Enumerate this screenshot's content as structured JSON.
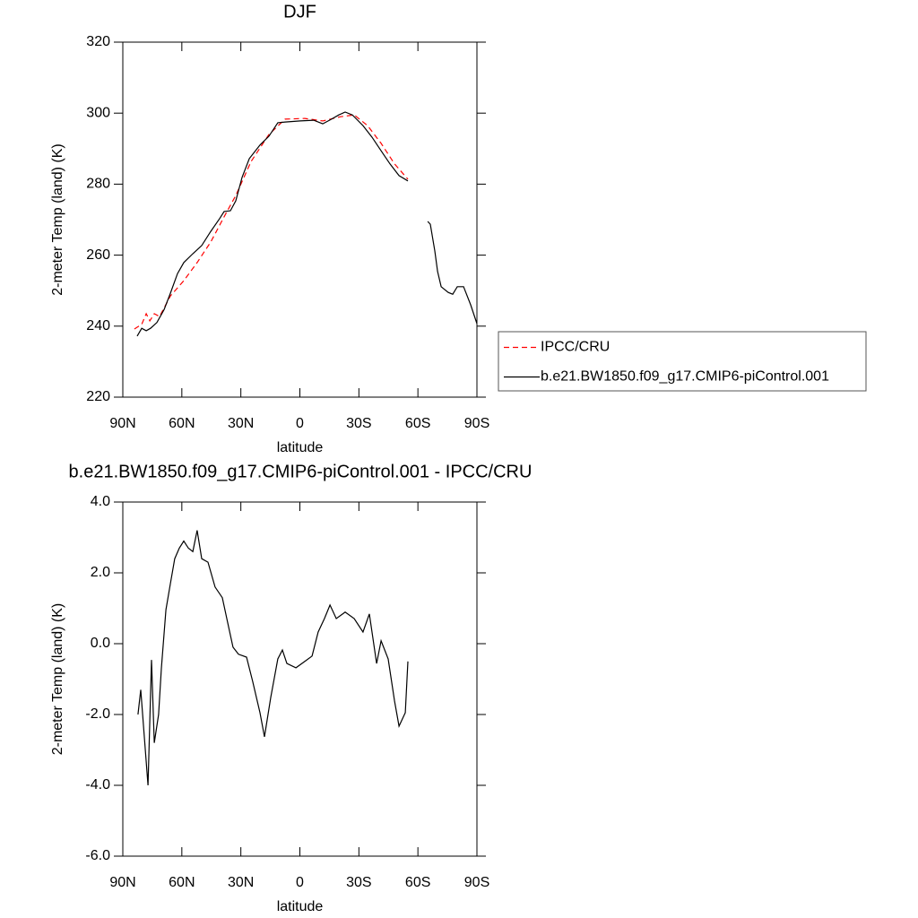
{
  "chart_data": [
    {
      "type": "line",
      "title": "DJF",
      "x_label": "latitude",
      "y_label": "2-meter Temp (land) (K)",
      "xlim": [
        90,
        -90
      ],
      "xticks": [
        {
          "value": 90,
          "label": "90N"
        },
        {
          "value": 60,
          "label": "60N"
        },
        {
          "value": 30,
          "label": "30N"
        },
        0,
        {
          "value": -30,
          "label": "30S"
        },
        {
          "value": -60,
          "label": "60S"
        },
        {
          "value": -90,
          "label": "90S"
        }
      ],
      "ylim": [
        220,
        320
      ],
      "yticks": [
        220,
        240,
        260,
        280,
        300,
        320
      ],
      "legend": "right",
      "series": [
        {
          "name": "IPCC/CRU",
          "color": "#ff0000",
          "linestyle": "dashed",
          "x": [
            84.1,
            80.4,
            78.1,
            76.3,
            74.0,
            71.3,
            65.8,
            59.0,
            52.2,
            45.3,
            38.5,
            32.6,
            24.8,
            15.7,
            7.5,
            -2.5,
            -11.6,
            -20.7,
            -27.6,
            -34.4,
            -41.3,
            -48.1,
            -54.9
          ],
          "values": [
            239.2,
            240.5,
            243.5,
            241.5,
            243.5,
            242.7,
            248.5,
            252.8,
            257.9,
            263.7,
            270.8,
            276.8,
            286.4,
            294.0,
            298.3,
            298.5,
            297.8,
            299.0,
            299.5,
            296.5,
            291.5,
            285.7,
            281.4
          ]
        },
        {
          "name": "b.e21.BW1850.f09_g17.CMIP6-piControl.001",
          "color": "#000000",
          "linestyle": "solid",
          "x": [
            82.7,
            80.4,
            78.1,
            75.9,
            72.7,
            69.0,
            65.8,
            62.2,
            59.0,
            54.4,
            49.9,
            45.3,
            40.8,
            38.5,
            35.3,
            32.6,
            29.4,
            25.7,
            20.3,
            15.7,
            11.2,
            7.5,
            -0.2,
            -7.0,
            -11.6,
            -16.1,
            -19.8,
            -23.0,
            -26.7,
            -32.1,
            -36.7,
            -41.3,
            -45.8,
            -50.4,
            -54.9,
            -60.0,
            -65.0,
            -66.3,
            -68.6,
            -70.0,
            -71.8,
            -75.4,
            -77.7,
            -80.0,
            -83.2,
            -86.8,
            -90.0
          ],
          "values": [
            237.2,
            239.4,
            238.7,
            239.4,
            241.0,
            244.7,
            249.3,
            254.8,
            257.9,
            260.4,
            262.7,
            266.7,
            270.3,
            272.3,
            272.5,
            275.3,
            281.9,
            287.2,
            291.0,
            293.5,
            297.3,
            297.5,
            297.8,
            298.0,
            297.0,
            298.3,
            299.5,
            300.3,
            299.5,
            296.5,
            293.2,
            289.4,
            285.7,
            282.4,
            280.9,
            null,
            269.5,
            268.7,
            261.2,
            255.4,
            251.1,
            249.5,
            249.0,
            251.1,
            251.1,
            246.0,
            240.7
          ]
        }
      ]
    },
    {
      "type": "line",
      "title": "b.e21.BW1850.f09_g17.CMIP6-piControl.001 - IPCC/CRU",
      "x_label": "latitude",
      "y_label": "2-meter Temp (land) (K)",
      "xlim": [
        90,
        -90
      ],
      "xticks": [
        {
          "value": 90,
          "label": "90N"
        },
        {
          "value": 60,
          "label": "60N"
        },
        {
          "value": 30,
          "label": "30N"
        },
        0,
        {
          "value": -30,
          "label": "30S"
        },
        {
          "value": -60,
          "label": "60S"
        },
        {
          "value": -90,
          "label": "90S"
        }
      ],
      "ylim": [
        -6,
        4
      ],
      "yticks": [
        {
          "value": -6,
          "label": "-6.0"
        },
        {
          "value": -4,
          "label": "-4.0"
        },
        {
          "value": -2,
          "label": "-2.0"
        },
        {
          "value": 0,
          "label": "0.0"
        },
        {
          "value": 2,
          "label": "2.0"
        },
        {
          "value": 4,
          "label": "4.0"
        }
      ],
      "series": [
        {
          "color": "#000000",
          "linestyle": "solid",
          "x": [
            82.3,
            80.9,
            79.5,
            77.2,
            75.4,
            74.0,
            71.8,
            70.4,
            68.1,
            65.8,
            63.6,
            61.3,
            59.0,
            56.7,
            54.4,
            52.2,
            49.9,
            46.7,
            43.1,
            39.4,
            36.2,
            34.0,
            31.2,
            27.1,
            24.0,
            20.3,
            18.0,
            14.8,
            11.2,
            8.9,
            6.6,
            2.0,
            -2.5,
            -6.2,
            -9.3,
            -12.5,
            -15.3,
            -18.5,
            -23.0,
            -27.6,
            -32.1,
            -35.3,
            -39.0,
            -41.3,
            -44.9,
            -48.1,
            -50.4,
            -53.6,
            -54.9
          ],
          "values": [
            -2.0,
            -1.3,
            -2.3,
            -4.0,
            -0.46,
            -2.8,
            -2.0,
            -0.7,
            0.96,
            1.7,
            2.4,
            2.7,
            2.9,
            2.7,
            2.6,
            3.2,
            2.4,
            2.3,
            1.6,
            1.3,
            0.46,
            -0.1,
            -0.3,
            -0.38,
            -1.06,
            -1.95,
            -2.63,
            -1.52,
            -0.43,
            -0.18,
            -0.56,
            -0.68,
            -0.5,
            -0.35,
            0.33,
            0.71,
            1.09,
            0.71,
            0.89,
            0.71,
            0.33,
            0.84,
            -0.56,
            0.08,
            -0.43,
            -1.62,
            -2.33,
            -1.95,
            -0.5
          ]
        }
      ]
    }
  ]
}
